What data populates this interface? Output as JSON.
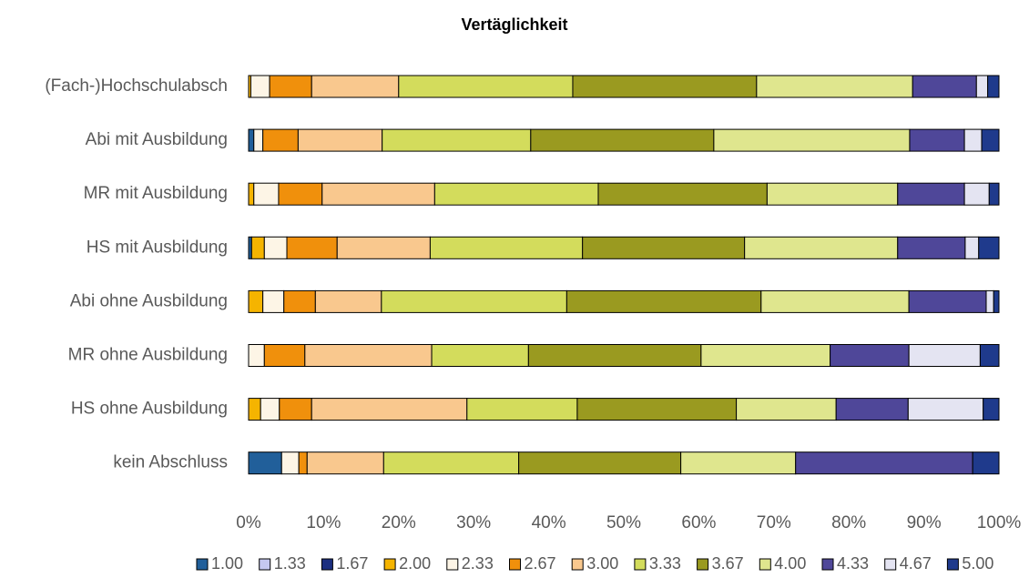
{
  "chart_data": {
    "type": "stacked_barh",
    "title": "Vertäglichkeit",
    "categories": [
      "(Fach-)Hochschulabsch",
      "Abi mit Ausbildung",
      "MR mit Ausbildung",
      "HS mit Ausbildung",
      "Abi ohne Ausbildung",
      "MR ohne Ausbildung",
      "HS ohne Ausbildung",
      "kein Abschluss"
    ],
    "series": [
      {
        "name": "1.00",
        "color": "#215f9a",
        "values": [
          0,
          0.7,
          0,
          0.4,
          0,
          0,
          0,
          4.4
        ]
      },
      {
        "name": "1.33",
        "color": "#c5c8f0",
        "values": [
          0,
          0,
          0,
          0,
          0,
          0,
          0,
          0
        ]
      },
      {
        "name": "1.67",
        "color": "#1c2f80",
        "values": [
          0,
          0,
          0,
          0,
          0,
          0,
          0,
          0
        ]
      },
      {
        "name": "2.00",
        "color": "#f5b400",
        "values": [
          0.3,
          0,
          0.7,
          1.7,
          1.9,
          0,
          1.6,
          0
        ]
      },
      {
        "name": "2.33",
        "color": "#fdf5e6",
        "values": [
          2.5,
          1.2,
          3.3,
          3.0,
          2.8,
          2.1,
          2.5,
          2.3
        ]
      },
      {
        "name": "2.67",
        "color": "#f0900c",
        "values": [
          5.6,
          4.7,
          5.8,
          6.7,
          4.2,
          5.4,
          4.3,
          1.1
        ]
      },
      {
        "name": "3.00",
        "color": "#f9c88e",
        "values": [
          11.6,
          11.2,
          15.0,
          12.4,
          8.8,
          16.9,
          20.7,
          10.2
        ]
      },
      {
        "name": "3.33",
        "color": "#d3dc5c",
        "values": [
          23.2,
          19.8,
          21.8,
          20.3,
          24.7,
          12.9,
          14.7,
          18.0
        ]
      },
      {
        "name": "3.67",
        "color": "#9a9a20",
        "values": [
          24.5,
          24.4,
          22.5,
          21.6,
          25.9,
          23.0,
          21.2,
          21.6
        ]
      },
      {
        "name": "4.00",
        "color": "#dfe68e",
        "values": [
          20.8,
          26.1,
          17.4,
          20.4,
          19.7,
          17.2,
          13.3,
          15.3
        ]
      },
      {
        "name": "4.33",
        "color": "#4f4799",
        "values": [
          8.5,
          7.3,
          8.9,
          9.0,
          10.3,
          10.5,
          9.6,
          23.6
        ]
      },
      {
        "name": "4.67",
        "color": "#e4e4f2",
        "values": [
          1.5,
          2.3,
          3.3,
          1.8,
          1.0,
          9.5,
          10.0,
          0
        ]
      },
      {
        "name": "5.00",
        "color": "#1f3a8c",
        "values": [
          1.5,
          2.3,
          1.3,
          2.7,
          0.7,
          2.5,
          2.1,
          3.5
        ]
      }
    ],
    "xlim": [
      0,
      100
    ],
    "xticks": [
      {
        "value": 0,
        "label": "0%"
      },
      {
        "value": 10,
        "label": "10%"
      },
      {
        "value": 20,
        "label": "20%"
      },
      {
        "value": 30,
        "label": "30%"
      },
      {
        "value": 40,
        "label": "40%"
      },
      {
        "value": 50,
        "label": "50%"
      },
      {
        "value": 60,
        "label": "60%"
      },
      {
        "value": 70,
        "label": "70%"
      },
      {
        "value": 80,
        "label": "80%"
      },
      {
        "value": 90,
        "label": "90%"
      },
      {
        "value": 100,
        "label": "100%"
      }
    ],
    "legend": "bottom"
  }
}
